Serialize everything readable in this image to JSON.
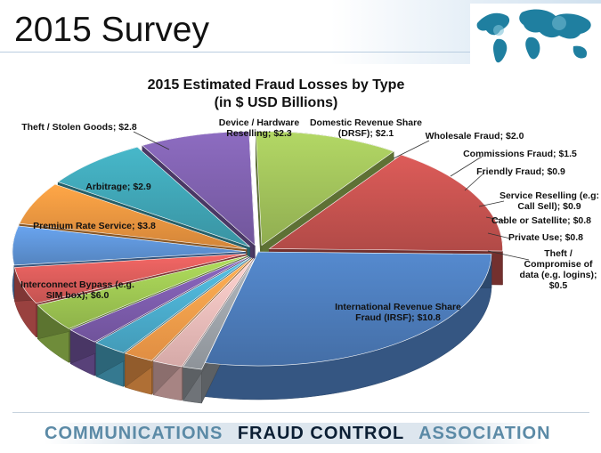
{
  "page": {
    "title": "2015 Survey",
    "footer": {
      "part1": "COMMUNICATIONS",
      "part2": "FRAUD CONTROL",
      "part3": "ASSOCIATION",
      "color_light": "#5b8aa6",
      "color_dark": "#0b1e33"
    }
  },
  "chart_data": {
    "type": "pie",
    "style": "3d-exploded",
    "title": "2015 Estimated Fraud Losses by Type",
    "subtitle": "(in $ USD Billions)",
    "slices": [
      {
        "label": "International Revenue Share Fraud (IRSF); $10.8",
        "value": 10.8,
        "color": "#4a78b4"
      },
      {
        "label": "Theft / Compromise of data (e.g. logins); $0.5",
        "value": 0.5,
        "color": "#9aa0a6"
      },
      {
        "label": "Private Use; $0.8",
        "value": 0.8,
        "color": "#e8b8b6"
      },
      {
        "label": "Cable or Satellite; $0.8",
        "value": 0.8,
        "color": "#f39a49"
      },
      {
        "label": "Service Reselling (e.g: Call Sell); $0.9",
        "value": 0.9,
        "color": "#49a8c8"
      },
      {
        "label": "Friendly Fraud; $0.9",
        "value": 0.9,
        "color": "#7a5aa8"
      },
      {
        "label": "Commissions Fraud; $1.5",
        "value": 1.5,
        "color": "#9ac250"
      },
      {
        "label": "Wholesale Fraud; $2.0",
        "value": 2.0,
        "color": "#d45a58"
      },
      {
        "label": "Domestic Revenue Share (DRSF); $2.1",
        "value": 2.1,
        "color": "#5b8fd0"
      },
      {
        "label": "Device / Hardware Reselling; $2.3",
        "value": 2.3,
        "color": "#e5913e"
      },
      {
        "label": "Theft / Stolen Goods; $2.8",
        "value": 2.8,
        "color": "#3ea0b0"
      },
      {
        "label": "Arbitrage; $2.9",
        "value": 2.9,
        "color": "#7b5ea8"
      },
      {
        "label": "Premium Rate Service; $3.8",
        "value": 3.8,
        "color": "#9cbc58"
      },
      {
        "label": "Interconnect Bypass (e.g. SIM box); $6.0",
        "value": 6.0,
        "color": "#c0504d"
      }
    ]
  }
}
